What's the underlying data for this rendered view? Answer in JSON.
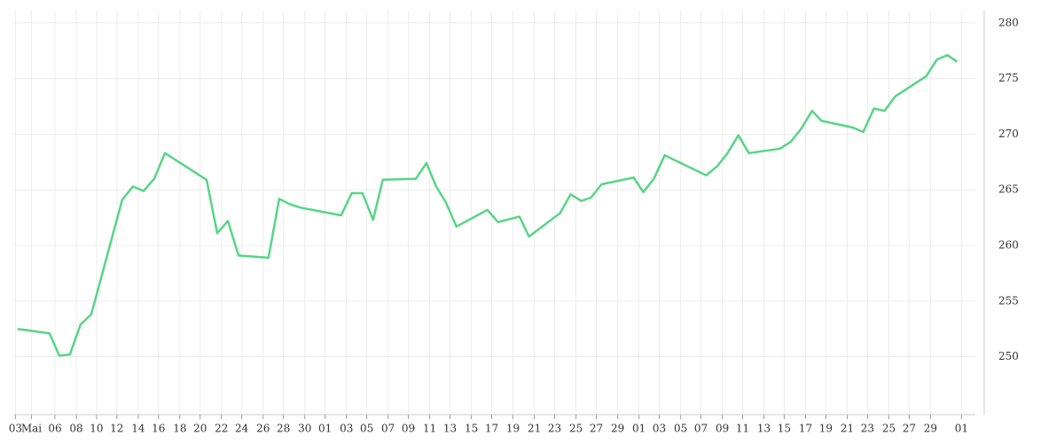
{
  "chart_data": {
    "type": "line",
    "x": [
      -3.5,
      -0.5,
      0.4,
      1.4,
      2.4,
      3.4,
      6.3,
      7.3,
      8.3,
      9.3,
      10.3,
      14.2,
      15.2,
      16.2,
      17.2,
      20.0,
      21.0,
      22.0,
      23.0,
      26.8,
      27.8,
      28.8,
      29.8,
      30.7,
      33.8,
      34.8,
      35.7,
      36.6,
      37.6,
      40.5,
      41.5,
      43.5,
      44.4,
      47.3,
      48.3,
      49.3,
      50.2,
      51.2,
      54.2,
      55.1,
      56.1,
      57.1,
      61.0,
      62.0,
      63.0,
      64.0,
      65.0,
      67.9,
      68.9,
      69.9,
      70.9,
      71.8,
      74.7,
      75.7,
      76.7,
      77.7,
      78.7,
      81.6,
      82.6,
      83.6,
      84.5
    ],
    "values": [
      252.5,
      252.1,
      250.1,
      250.2,
      252.9,
      253.8,
      264.1,
      265.3,
      264.9,
      266.0,
      268.3,
      265.9,
      261.1,
      262.2,
      259.1,
      258.9,
      264.2,
      263.7,
      263.4,
      262.7,
      264.7,
      264.7,
      262.3,
      265.9,
      266.0,
      267.4,
      265.3,
      263.9,
      261.7,
      263.2,
      262.1,
      262.6,
      260.8,
      262.9,
      264.6,
      264.0,
      264.3,
      265.5,
      266.1,
      264.8,
      266.0,
      268.1,
      266.3,
      267.1,
      268.3,
      269.9,
      268.3,
      268.7,
      269.3,
      270.5,
      272.1,
      271.2,
      270.6,
      270.2,
      272.3,
      272.1,
      273.4,
      275.2,
      276.7,
      277.1,
      276.5
    ],
    "color": "#57d585",
    "xlim": [
      -3.9,
      86.2
    ],
    "ylim": [
      244.8,
      281.1
    ],
    "yticks": [
      250,
      255,
      260,
      265,
      270,
      275,
      280
    ],
    "xticks": [
      {
        "value": -3.7,
        "label": "03"
      },
      {
        "value": -2.2,
        "label": "Mai"
      },
      {
        "value": 0,
        "label": "06"
      },
      {
        "value": 2.0,
        "label": "08"
      },
      {
        "value": 3.9,
        "label": "10"
      },
      {
        "value": 5.8,
        "label": "12"
      },
      {
        "value": 7.8,
        "label": "14"
      },
      {
        "value": 9.7,
        "label": "16"
      },
      {
        "value": 11.7,
        "label": "18"
      },
      {
        "value": 13.6,
        "label": "20"
      },
      {
        "value": 15.6,
        "label": "22"
      },
      {
        "value": 17.5,
        "label": "24"
      },
      {
        "value": 19.5,
        "label": "26"
      },
      {
        "value": 21.4,
        "label": "28"
      },
      {
        "value": 23.4,
        "label": "30"
      },
      {
        "value": 25.3,
        "label": "01"
      },
      {
        "value": 27.3,
        "label": "03"
      },
      {
        "value": 29.2,
        "label": "05"
      },
      {
        "value": 31.2,
        "label": "07"
      },
      {
        "value": 33.1,
        "label": "09"
      },
      {
        "value": 35.1,
        "label": "11"
      },
      {
        "value": 37.0,
        "label": "13"
      },
      {
        "value": 39.0,
        "label": "15"
      },
      {
        "value": 40.9,
        "label": "17"
      },
      {
        "value": 42.9,
        "label": "19"
      },
      {
        "value": 44.9,
        "label": "21"
      },
      {
        "value": 46.8,
        "label": "23"
      },
      {
        "value": 48.8,
        "label": "25"
      },
      {
        "value": 50.7,
        "label": "27"
      },
      {
        "value": 52.7,
        "label": "29"
      },
      {
        "value": 54.7,
        "label": "01"
      },
      {
        "value": 56.6,
        "label": "03"
      },
      {
        "value": 58.6,
        "label": "05"
      },
      {
        "value": 60.5,
        "label": "07"
      },
      {
        "value": 62.5,
        "label": "09"
      },
      {
        "value": 64.4,
        "label": "11"
      },
      {
        "value": 66.4,
        "label": "13"
      },
      {
        "value": 68.3,
        "label": "15"
      },
      {
        "value": 70.3,
        "label": "17"
      },
      {
        "value": 72.2,
        "label": "19"
      },
      {
        "value": 74.2,
        "label": "21"
      },
      {
        "value": 76.1,
        "label": "23"
      },
      {
        "value": 78.1,
        "label": "25"
      },
      {
        "value": 80.0,
        "label": "27"
      },
      {
        "value": 82.0,
        "label": "29"
      },
      {
        "value": 84.9,
        "label": "01"
      }
    ],
    "grid": true
  }
}
